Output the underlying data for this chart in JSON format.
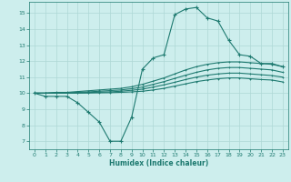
{
  "bg_color": "#cdeeed",
  "grid_color": "#aed8d5",
  "line_color": "#1e7a70",
  "xlabel": "Humidex (Indice chaleur)",
  "xlim": [
    -0.5,
    23.5
  ],
  "ylim": [
    6.5,
    15.7
  ],
  "yticks": [
    7,
    8,
    9,
    10,
    11,
    12,
    13,
    14,
    15
  ],
  "xticks": [
    0,
    1,
    2,
    3,
    4,
    5,
    6,
    7,
    8,
    9,
    10,
    11,
    12,
    13,
    14,
    15,
    16,
    17,
    18,
    19,
    20,
    21,
    22,
    23
  ],
  "line1_x": [
    0,
    1,
    2,
    3,
    4,
    5,
    6,
    7,
    8,
    9,
    10,
    11,
    12,
    13,
    14,
    15,
    16,
    17,
    18,
    19,
    20,
    21,
    22,
    23
  ],
  "line1_y": [
    10.0,
    9.8,
    9.8,
    9.8,
    9.4,
    8.8,
    8.2,
    7.0,
    7.0,
    8.5,
    11.5,
    12.2,
    12.4,
    14.9,
    15.25,
    15.35,
    14.7,
    14.5,
    13.3,
    12.4,
    12.3,
    11.85,
    11.85,
    11.65
  ],
  "line2_x": [
    0,
    1,
    2,
    3,
    4,
    5,
    6,
    7,
    8,
    9,
    10,
    11,
    12,
    13,
    14,
    15,
    16,
    17,
    18,
    19,
    20,
    21,
    22,
    23
  ],
  "line2_y": [
    10.0,
    10.0,
    10.05,
    10.05,
    10.1,
    10.15,
    10.2,
    10.25,
    10.3,
    10.4,
    10.55,
    10.75,
    10.95,
    11.2,
    11.45,
    11.65,
    11.8,
    11.9,
    11.95,
    11.95,
    11.9,
    11.85,
    11.8,
    11.65
  ],
  "line3_x": [
    0,
    1,
    2,
    3,
    4,
    5,
    6,
    7,
    8,
    9,
    10,
    11,
    12,
    13,
    14,
    15,
    16,
    17,
    18,
    19,
    20,
    21,
    22,
    23
  ],
  "line3_y": [
    10.0,
    10.0,
    10.02,
    10.02,
    10.05,
    10.08,
    10.12,
    10.16,
    10.2,
    10.28,
    10.38,
    10.55,
    10.72,
    10.92,
    11.12,
    11.3,
    11.45,
    11.55,
    11.6,
    11.6,
    11.55,
    11.5,
    11.45,
    11.3
  ],
  "line4_x": [
    0,
    1,
    2,
    3,
    4,
    5,
    6,
    7,
    8,
    9,
    10,
    11,
    12,
    13,
    14,
    15,
    16,
    17,
    18,
    19,
    20,
    21,
    22,
    23
  ],
  "line4_y": [
    10.0,
    10.0,
    10.0,
    10.0,
    10.02,
    10.04,
    10.06,
    10.08,
    10.12,
    10.18,
    10.25,
    10.38,
    10.52,
    10.68,
    10.85,
    11.0,
    11.12,
    11.2,
    11.25,
    11.25,
    11.2,
    11.15,
    11.1,
    11.0
  ],
  "line5_x": [
    0,
    1,
    2,
    3,
    4,
    5,
    6,
    7,
    8,
    9,
    10,
    11,
    12,
    13,
    14,
    15,
    16,
    17,
    18,
    19,
    20,
    21,
    22,
    23
  ],
  "line5_y": [
    10.0,
    10.0,
    10.0,
    10.0,
    10.0,
    10.01,
    10.02,
    10.03,
    10.05,
    10.08,
    10.12,
    10.2,
    10.3,
    10.44,
    10.58,
    10.72,
    10.82,
    10.9,
    10.95,
    10.95,
    10.9,
    10.85,
    10.82,
    10.7
  ]
}
